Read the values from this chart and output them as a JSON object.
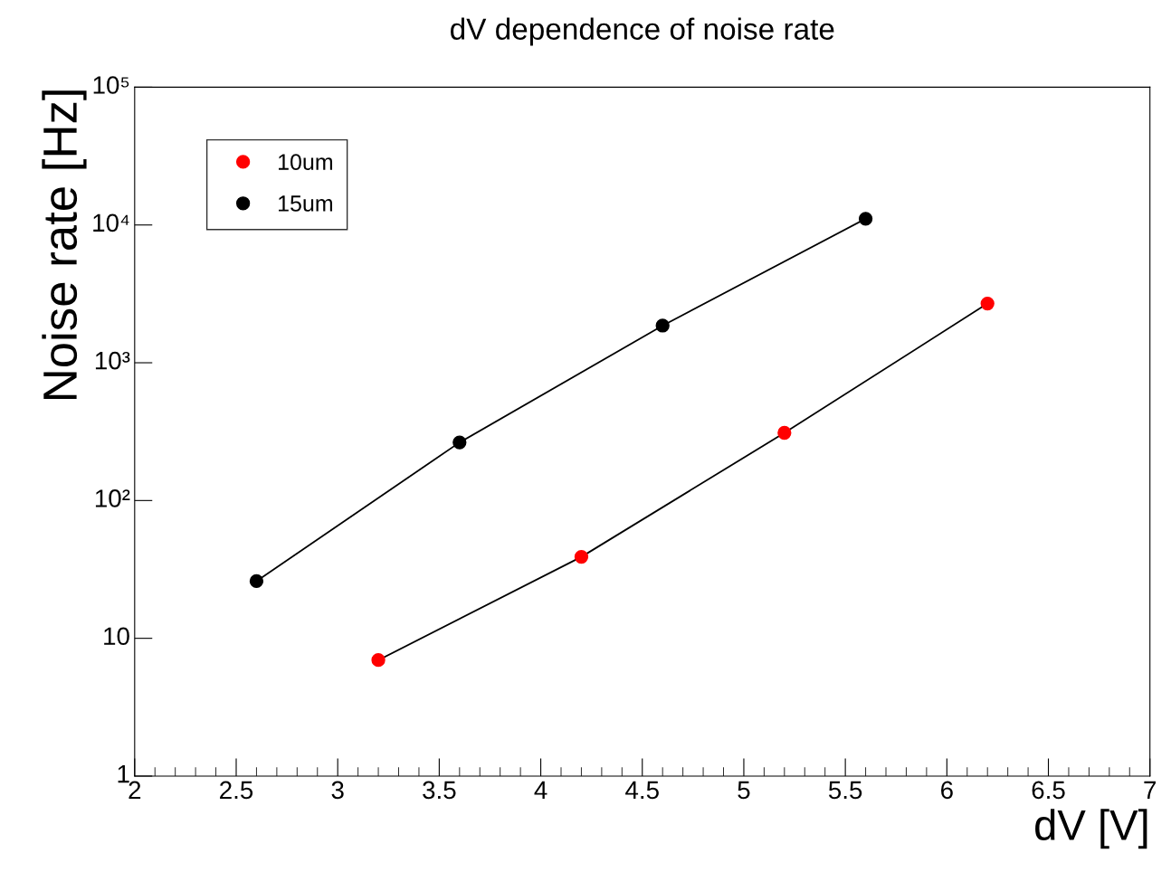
{
  "chart_data": {
    "type": "line",
    "title": "dV dependence of noise rate",
    "xlabel": "dV [V]",
    "ylabel": "Noise rate [Hz]",
    "series": [
      {
        "name": "10um",
        "color": "#ff0000",
        "x": [
          3.2,
          4.2,
          5.2,
          6.2
        ],
        "values": [
          6.95,
          39,
          310,
          2690
        ]
      },
      {
        "name": "15um",
        "color": "#000000",
        "x": [
          2.6,
          3.6,
          4.6,
          5.6
        ],
        "values": [
          26,
          264,
          1860,
          11100
        ]
      }
    ],
    "log": "y",
    "xlim": [
      2,
      7
    ],
    "xticks": [
      2,
      2.5,
      3,
      3.5,
      4,
      4.5,
      5,
      5.5,
      6,
      6.5,
      7
    ],
    "ylim": [
      1,
      100000
    ],
    "yticks": [
      1,
      10,
      {
        "value": 100,
        "label": "10²"
      },
      {
        "value": 1000,
        "label": "10³"
      },
      {
        "value": 10000,
        "label": "10⁴"
      },
      {
        "value": 100000,
        "label": "10⁵"
      }
    ],
    "grid": false,
    "legend": "top left",
    "marker": "circle",
    "line_style": "solid"
  }
}
